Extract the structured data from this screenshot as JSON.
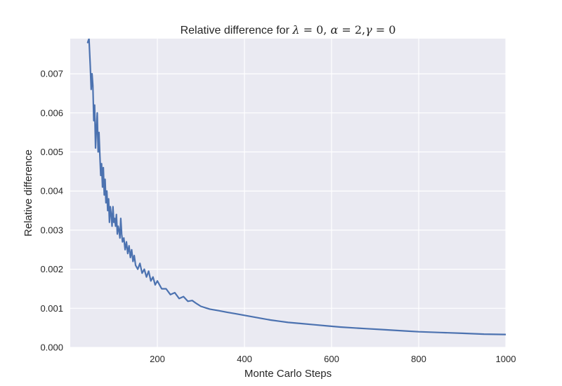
{
  "chart_data": {
    "type": "line",
    "title": {
      "prefix": "Relative difference for ",
      "lambda": "λ",
      "lambda_eq": " = 0, ",
      "alpha": "α",
      "alpha_eq": " = 2,",
      "gamma": "γ",
      "gamma_eq": " = 0"
    },
    "xlabel": "Monte Carlo Steps",
    "ylabel": "Relative difference",
    "xlim": [
      0,
      1000
    ],
    "ylim": [
      0,
      0.0079
    ],
    "x_ticks": [
      200,
      400,
      600,
      800,
      1000
    ],
    "x_tick_labels": [
      "200",
      "400",
      "600",
      "800",
      "1000"
    ],
    "y_ticks": [
      0,
      0.001,
      0.002,
      0.003,
      0.004,
      0.005,
      0.006,
      0.007
    ],
    "y_tick_labels": [
      "0.000",
      "0.001",
      "0.002",
      "0.003",
      "0.004",
      "0.005",
      "0.006",
      "0.007"
    ],
    "grid": true,
    "background": "#eaeaf2",
    "grid_color": "#ffffff",
    "line_color": "#4c72b0",
    "series": [
      {
        "x": [
          40,
          43,
          46,
          48,
          50,
          52,
          54,
          56,
          58,
          60,
          62,
          64,
          66,
          68,
          70,
          72,
          74,
          76,
          78,
          80,
          82,
          84,
          86,
          88,
          90,
          92,
          94,
          96,
          98,
          100,
          102,
          104,
          106,
          108,
          110,
          112,
          114,
          116,
          118,
          120,
          123,
          126,
          129,
          132,
          135,
          138,
          141,
          144,
          147,
          150,
          155,
          160,
          165,
          170,
          175,
          180,
          185,
          190,
          195,
          200,
          210,
          220,
          230,
          240,
          250,
          260,
          270,
          280,
          290,
          300,
          320,
          340,
          360,
          380,
          400,
          420,
          440,
          460,
          480,
          500,
          530,
          560,
          590,
          620,
          650,
          680,
          710,
          740,
          770,
          800,
          850,
          900,
          950,
          1000
        ],
        "y": [
          0.0078,
          0.0079,
          0.0072,
          0.0066,
          0.007,
          0.0067,
          0.0058,
          0.0062,
          0.0051,
          0.0056,
          0.006,
          0.005,
          0.0055,
          0.0049,
          0.0044,
          0.0047,
          0.0041,
          0.0046,
          0.0039,
          0.0043,
          0.0037,
          0.004,
          0.0035,
          0.0038,
          0.0032,
          0.0036,
          0.0034,
          0.0031,
          0.0036,
          0.0032,
          0.0033,
          0.0031,
          0.0034,
          0.0029,
          0.0031,
          0.003,
          0.0028,
          0.0033,
          0.0029,
          0.0027,
          0.0028,
          0.0025,
          0.0027,
          0.0024,
          0.0026,
          0.0023,
          0.0025,
          0.0022,
          0.00235,
          0.0021,
          0.002,
          0.00215,
          0.0019,
          0.002,
          0.0018,
          0.00195,
          0.0017,
          0.0018,
          0.0016,
          0.0017,
          0.0015,
          0.0015,
          0.00135,
          0.0014,
          0.00125,
          0.0013,
          0.00118,
          0.0012,
          0.00112,
          0.00105,
          0.00098,
          0.00094,
          0.0009,
          0.00086,
          0.00082,
          0.00078,
          0.00074,
          0.0007,
          0.00067,
          0.00064,
          0.00061,
          0.00058,
          0.00055,
          0.00052,
          0.0005,
          0.00048,
          0.00046,
          0.00044,
          0.00042,
          0.0004,
          0.00038,
          0.00036,
          0.00034,
          0.00033
        ]
      }
    ]
  }
}
